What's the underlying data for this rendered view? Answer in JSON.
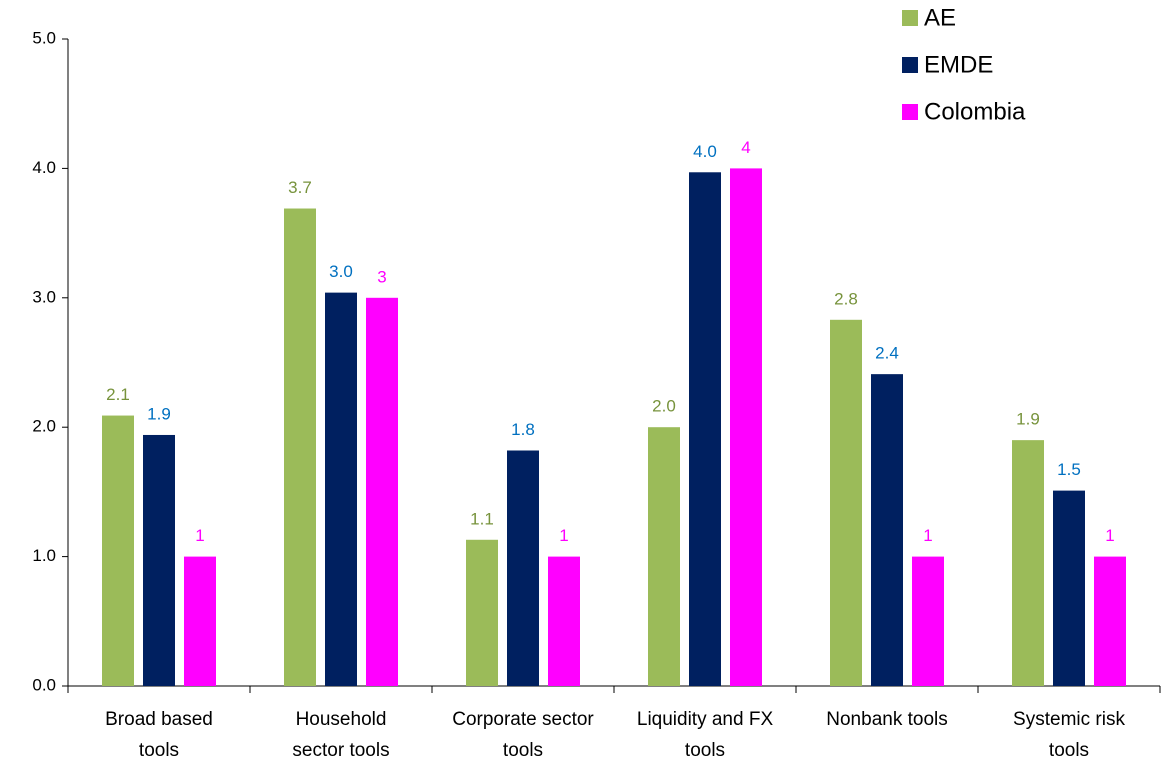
{
  "chart_data": {
    "type": "bar",
    "categories": [
      "Broad based\ntools",
      "Household\nsector tools",
      "Corporate sector\ntools",
      "Liquidity and FX\ntools",
      "Nonbank tools",
      "Systemic risk\ntools"
    ],
    "series": [
      {
        "name": "AE",
        "color": "#9BBB59",
        "label_color": "#77933C",
        "values": [
          2.09,
          3.69,
          1.13,
          2.0,
          2.83,
          1.9
        ],
        "value_labels": [
          "2.1",
          "3.7",
          "1.1",
          "2.0",
          "2.8",
          "1.9"
        ]
      },
      {
        "name": "EMDE",
        "color": "#002060",
        "label_color": "#0070C0",
        "values": [
          1.94,
          3.04,
          1.82,
          3.97,
          2.41,
          1.51
        ],
        "value_labels": [
          "1.9",
          "3.0",
          "1.8",
          "4.0",
          "2.4",
          "1.5"
        ]
      },
      {
        "name": "Colombia",
        "color": "#FF00FF",
        "label_color": "#FF00FF",
        "values": [
          1,
          3,
          1,
          4,
          1,
          1
        ]
      }
    ],
    "ylim": [
      0,
      5
    ],
    "yticks": [
      {
        "value": 0,
        "label": "0.0"
      },
      {
        "value": 1,
        "label": "1.0"
      },
      {
        "value": 2,
        "label": "2.0"
      },
      {
        "value": 3,
        "label": "3.0"
      },
      {
        "value": 4,
        "label": "4.0"
      },
      {
        "value": 5,
        "label": "5.0"
      }
    ],
    "legend": "top-right"
  }
}
